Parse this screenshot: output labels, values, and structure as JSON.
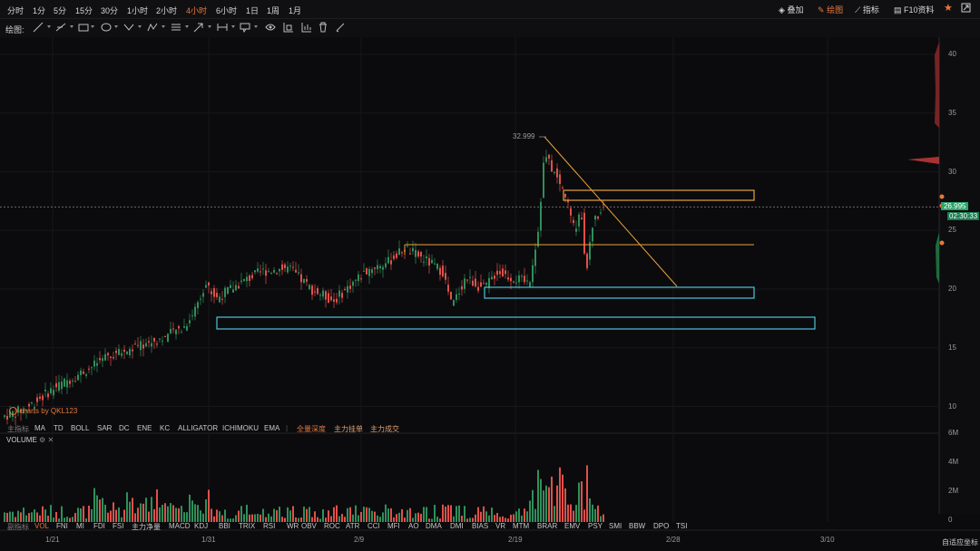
{
  "timeframes": [
    "分时",
    "1分",
    "5分",
    "15分",
    "30分",
    "1小时",
    "2小时",
    "4小时",
    "6小时",
    "1日",
    "1周",
    "1月"
  ],
  "active_timeframe": "4小时",
  "right_menu": {
    "overlay": "叠加",
    "draw": "绘图",
    "indicators": "指标",
    "f10": "F10资料"
  },
  "toolbar": {
    "label": "绘图:"
  },
  "price_axis": {
    "ticks": [
      "40",
      "35",
      "30",
      "25",
      "20",
      "15",
      "10"
    ]
  },
  "current_price": "26.995",
  "countdown": "02:30:33",
  "peak_label": "32.999",
  "watermark": "charts by QKL123",
  "main_indicators": [
    "主指标",
    "MA",
    "TD",
    "BOLL",
    "SAR",
    "DC",
    "ENE",
    "KC",
    "ALLIGATOR",
    "ICHIMOKU",
    "EMA"
  ],
  "depth_items": [
    "全量深度",
    "主力挂单",
    "主力成交"
  ],
  "volume_label": "VOLUME",
  "volume_axis": {
    "ticks": [
      "6M",
      "4M",
      "2M",
      "0"
    ]
  },
  "sub_indicators": [
    "副指标",
    "VOL",
    "FNI",
    "MI",
    "FDI",
    "FSI",
    "主力净量",
    "MACD",
    "KDJ",
    "BBI",
    "TRIX",
    "RSI",
    "WR",
    "OBV",
    "ROC",
    "ATR",
    "CCI",
    "MFI",
    "AO",
    "DMA",
    "DMI",
    "BIAS",
    "VR",
    "MTM",
    "BRAR",
    "EMV",
    "PSY",
    "SMI",
    "BBW",
    "DPO",
    "TSI"
  ],
  "x_axis": {
    "dates": [
      "1/21",
      "1/31",
      "2/9",
      "2/19",
      "2/28",
      "3/10"
    ]
  },
  "auto_fit": "自适应坐标",
  "colors": {
    "up": "#2f8f5b",
    "down": "#e0504a",
    "accent": "#e8773a",
    "box_orange": "#e8a23a",
    "box_cyan": "#4fc3d9",
    "price_tag": "#2ea36a"
  }
}
